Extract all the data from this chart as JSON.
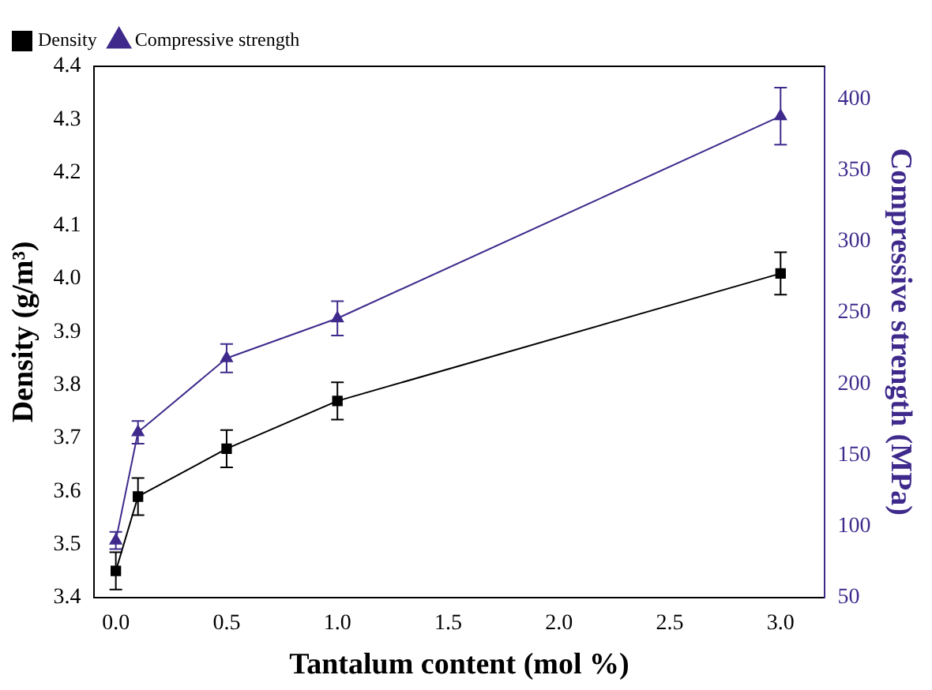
{
  "chart_data": {
    "type": "line",
    "xlabel": "Tantalum content (mol %)",
    "ylabel": "Density (g/m³)",
    "y2label": "Compressive strength (MPa)",
    "x": [
      0,
      0.1,
      0.5,
      1.0,
      3.0
    ],
    "series": [
      {
        "name": "Density",
        "color": "#000000",
        "marker": "square",
        "values": [
          3.45,
          3.59,
          3.68,
          3.77,
          4.01
        ],
        "errors": [
          0.035,
          0.035,
          0.035,
          0.035,
          0.04
        ]
      },
      {
        "name": "Compressive strength",
        "color": "#3f2a8c",
        "marker": "triangle",
        "axis": "y2",
        "values": [
          90,
          166,
          218,
          246,
          388
        ],
        "errors": [
          6,
          8,
          10,
          12,
          20
        ]
      }
    ],
    "xlim": [
      -0.1,
      3.2
    ],
    "xticks": [
      {
        "value": 0,
        "label": "0.0"
      },
      0.5,
      {
        "value": 1,
        "label": "1.0"
      },
      1.5,
      {
        "value": 2,
        "label": "2.0"
      },
      2.5,
      {
        "value": 3,
        "label": "3.0"
      }
    ],
    "ylim": [
      3.4,
      4.4
    ],
    "yticks": [
      3.4,
      3.5,
      3.6,
      3.7,
      3.8,
      3.9,
      {
        "value": 4,
        "label": "4.0"
      },
      4.1,
      4.2,
      4.3,
      4.4
    ],
    "y2lim": [
      50,
      423
    ],
    "y2ticks": [
      50,
      100,
      150,
      200,
      250,
      300,
      350,
      400
    ],
    "legend": "top left",
    "grid": false
  }
}
